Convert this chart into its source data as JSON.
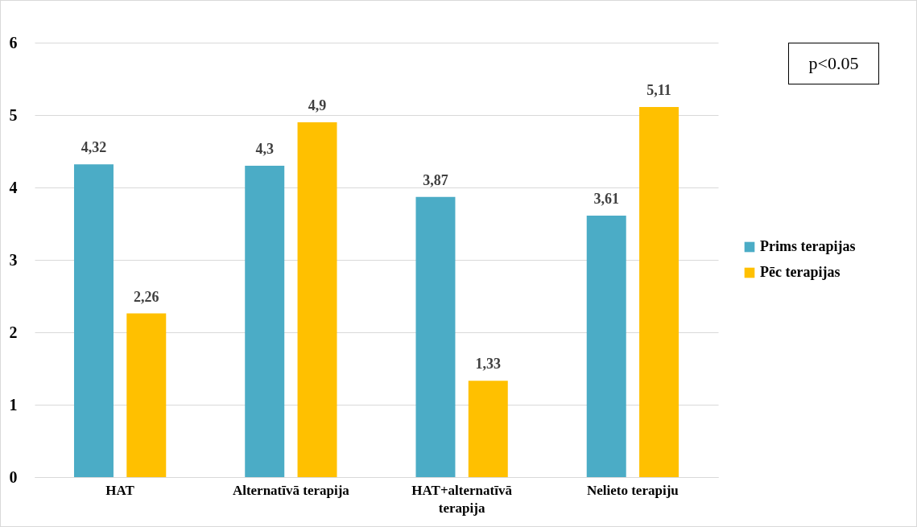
{
  "chart_data": {
    "type": "bar",
    "categories": [
      "HAT",
      "Alternatīvā terapija",
      "HAT+alternatīvā terapija",
      "Nelieto terapiju"
    ],
    "series": [
      {
        "name": "Prims terapijas",
        "color": "#4bacc6",
        "values": [
          4.32,
          4.3,
          3.87,
          3.61
        ],
        "value_labels": [
          "4,32",
          "4,3",
          "3,87",
          "3,61"
        ]
      },
      {
        "name": "Pēc terapijas",
        "color": "#ffc000",
        "values": [
          2.26,
          4.9,
          1.33,
          5.11
        ],
        "value_labels": [
          "2,26",
          "4,9",
          "1,33",
          "5,11"
        ]
      }
    ],
    "ylim": [
      0,
      6
    ],
    "yticks": [
      0,
      1,
      2,
      3,
      4,
      5,
      6
    ],
    "grid": "y",
    "legend": "right",
    "annotations": [
      "p<0.05"
    ]
  }
}
